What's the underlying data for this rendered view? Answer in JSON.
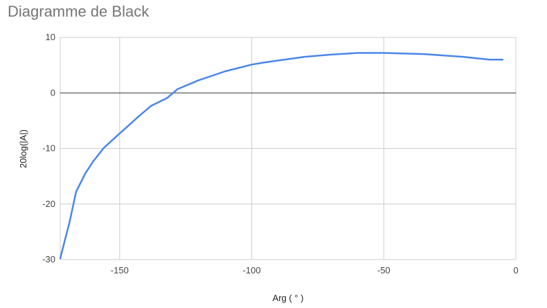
{
  "chart_data": {
    "type": "line",
    "title": "Diagramme de Black",
    "xlabel": "Arg ( ° )",
    "ylabel": "20log(|A|)",
    "xlim": [
      -172.5,
      0
    ],
    "ylim": [
      -30,
      10
    ],
    "x_ticks": [
      -150,
      -100,
      -50,
      0
    ],
    "y_ticks": [
      -30,
      -20,
      -10,
      0,
      10
    ],
    "grid": true,
    "legend": "none",
    "series": [
      {
        "color": "#4a86e8",
        "x": [
          -172.5,
          -171,
          -169,
          -166.5,
          -163,
          -160,
          -156,
          -150,
          -146,
          -143,
          -138,
          -132,
          -128,
          -120,
          -110,
          -100,
          -95,
          -80,
          -70,
          -60,
          -50,
          -35,
          -20,
          -10,
          -5
        ],
        "y": [
          -29.8,
          -27,
          -23.3,
          -17.8,
          -14.5,
          -12.3,
          -9.9,
          -7.3,
          -5.6,
          -4.3,
          -2.3,
          -0.9,
          0.7,
          2.3,
          3.9,
          5.1,
          5.5,
          6.5,
          6.9,
          7.2,
          7.2,
          7.0,
          6.5,
          6.0,
          6.0
        ]
      }
    ]
  }
}
